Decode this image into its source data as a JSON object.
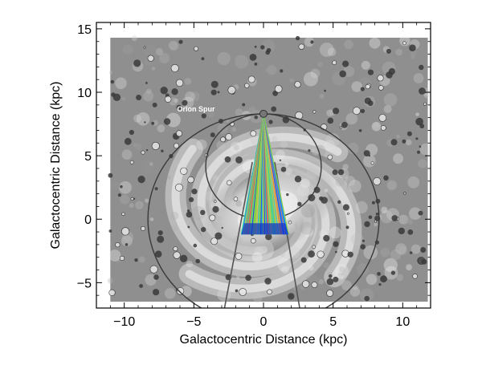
{
  "chart_data": {
    "type": "scatter",
    "title": "",
    "xlabel": "Galactocentric Distance (kpc)",
    "ylabel": "Galactocentric Distance (kpc)",
    "xlim": [
      -12,
      12
    ],
    "ylim": [
      -7,
      15.5
    ],
    "xticks": [
      -10,
      -5,
      0,
      5,
      10
    ],
    "yticks": [
      -5,
      0,
      5,
      10,
      15
    ],
    "grid": false,
    "annotations": [
      {
        "text": "Orion Spur",
        "x": -6.2,
        "y": 8.5
      }
    ],
    "background_image": "grayscale-milky-way-spiral-arms-map",
    "sun_position": {
      "x": 0,
      "y": 8.3
    },
    "circles": [
      {
        "cx": 0,
        "cy": 0,
        "r": 8.3
      },
      {
        "cx": 0,
        "cy": 4.15,
        "r": 4.15
      }
    ],
    "sightline_cone": {
      "apex": [
        0,
        8.3
      ],
      "base_y": -1.2,
      "base_x_range": [
        -1.6,
        1.8
      ],
      "colors": [
        "#1e3cff",
        "#1a8cff",
        "#2cc8e0",
        "#3be08a",
        "#8ed63a",
        "#d8c24a",
        "#f06a4a"
      ]
    },
    "lines": [
      {
        "from": [
          -0.8,
          4.5
        ],
        "to": [
          -2.8,
          -7
        ]
      },
      {
        "from": [
          0.8,
          4.5
        ],
        "to": [
          2.6,
          -7
        ]
      }
    ]
  }
}
